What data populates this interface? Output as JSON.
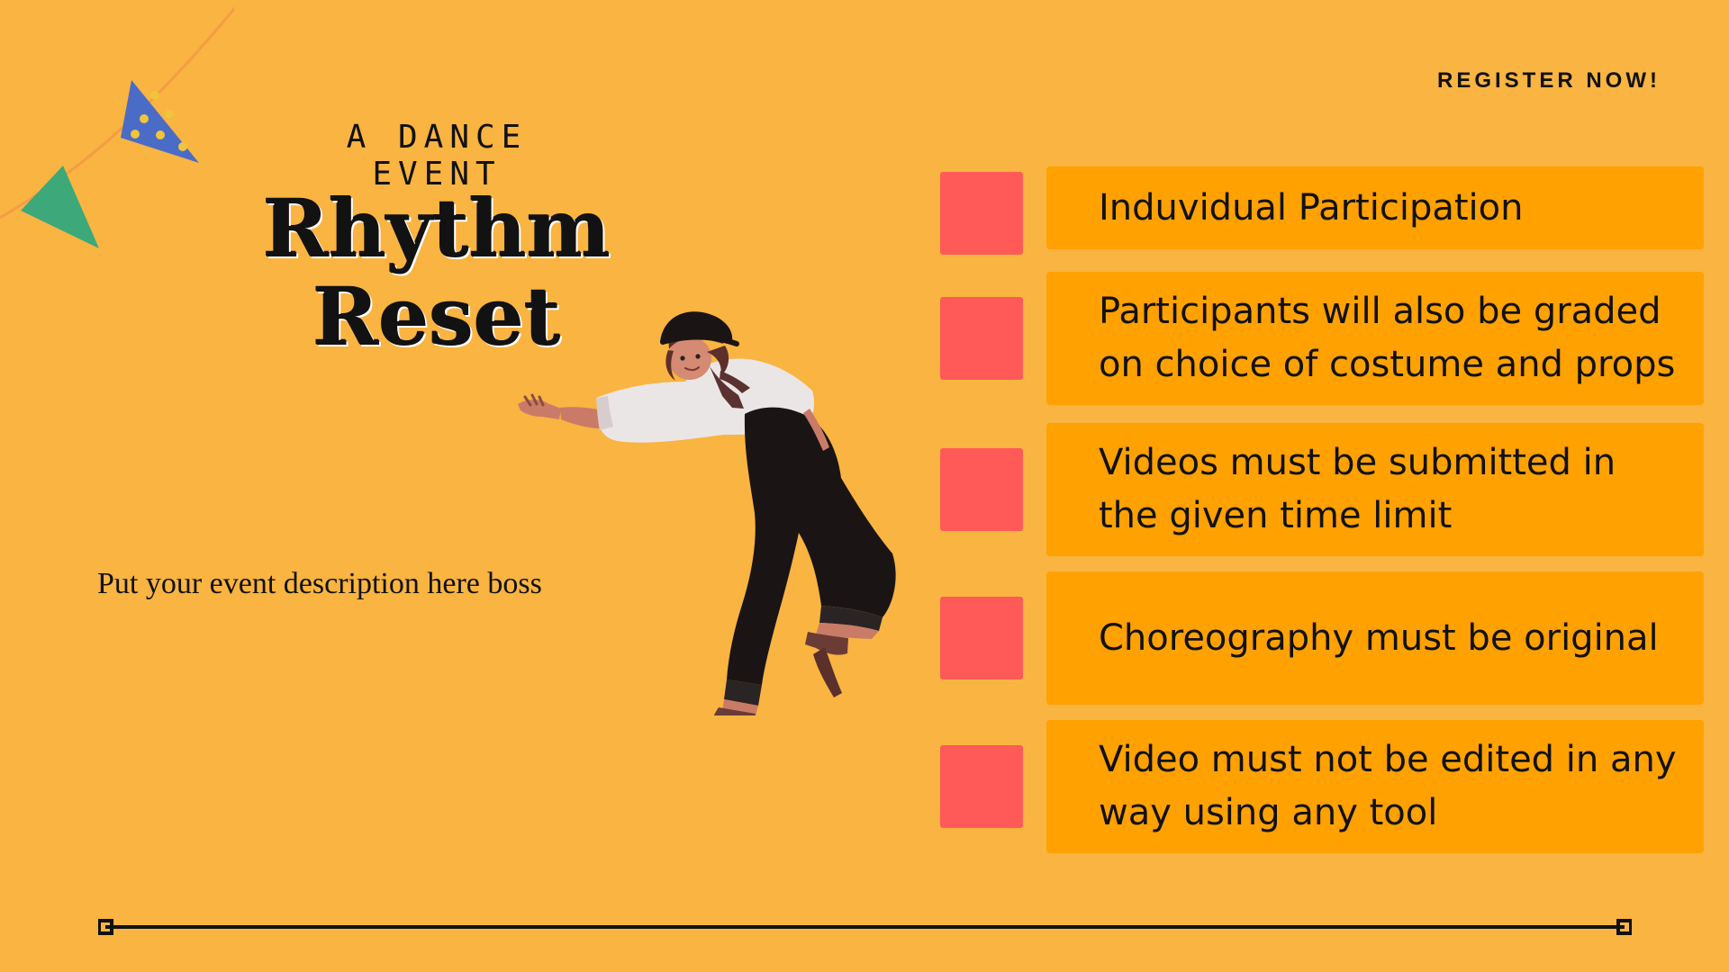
{
  "header": {
    "register_label": "REGISTER NOW!"
  },
  "event": {
    "eyebrow": "A DANCE EVENT",
    "title_line1": "Rhythm",
    "title_line2": "Reset",
    "description": "Put your event description here boss"
  },
  "rules": [
    {
      "text": "Induvidual Participation"
    },
    {
      "text": "Participants will also be graded on choice of costume and props"
    },
    {
      "text": "Videos must be submitted in the given time limit"
    },
    {
      "text": "Choreography must be original"
    },
    {
      "text": "Video must not be edited in any way using any tool"
    }
  ],
  "colors": {
    "background": "#f9b441",
    "rule_box": "#ffa100",
    "rule_marker": "#ff5a57",
    "bunting_blue": "#4a6cc7",
    "bunting_green": "#3da879"
  },
  "icons": {
    "bunting": "party-flags-icon",
    "dancer": "dancer-illustration"
  }
}
